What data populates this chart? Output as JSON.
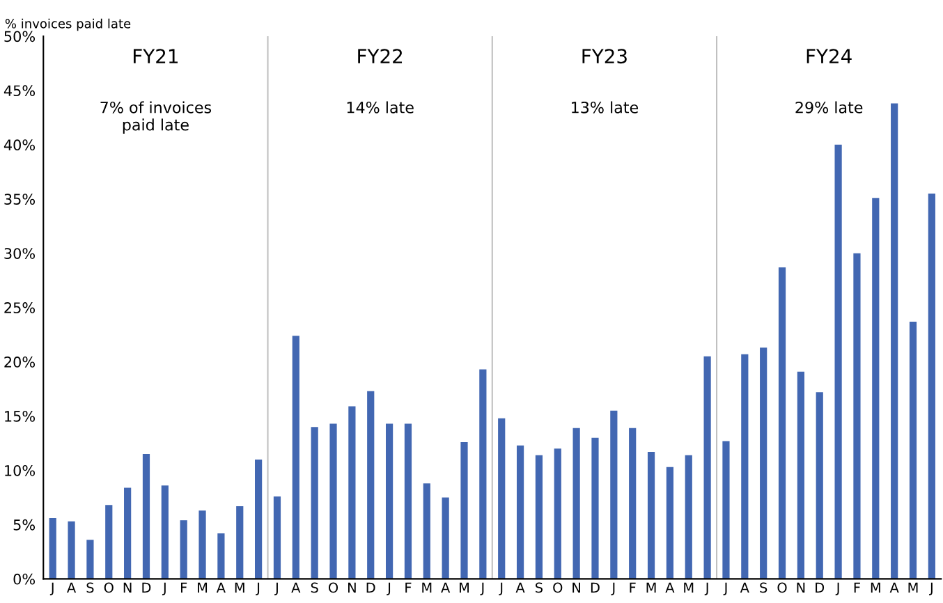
{
  "chart_data": {
    "type": "bar",
    "ylabel": "% invoices paid late",
    "categories": [
      "J",
      "A",
      "S",
      "O",
      "N",
      "D",
      "J",
      "F",
      "M",
      "A",
      "M",
      "J",
      "J",
      "A",
      "S",
      "O",
      "N",
      "D",
      "J",
      "F",
      "M",
      "A",
      "M",
      "J",
      "J",
      "A",
      "S",
      "O",
      "N",
      "D",
      "J",
      "F",
      "M",
      "A",
      "M",
      "J",
      "J",
      "A",
      "S",
      "O",
      "N",
      "D",
      "J",
      "F",
      "M",
      "A",
      "M",
      "J"
    ],
    "values": [
      5.6,
      5.3,
      3.6,
      6.8,
      8.4,
      11.5,
      8.6,
      5.4,
      6.3,
      4.2,
      6.7,
      11.0,
      7.6,
      22.4,
      14.0,
      14.3,
      15.9,
      17.3,
      14.3,
      14.3,
      8.8,
      7.5,
      12.6,
      19.3,
      14.8,
      12.3,
      11.4,
      12.0,
      13.9,
      13.0,
      15.5,
      13.9,
      11.7,
      10.3,
      11.4,
      20.5,
      12.7,
      20.7,
      21.3,
      28.7,
      19.1,
      17.2,
      40.0,
      30.0,
      35.1,
      43.8,
      23.7,
      35.5
    ],
    "color": "#4267b2",
    "ylim": [
      0,
      50
    ],
    "yticks": [
      {
        "value": 0,
        "label": "0%"
      },
      {
        "value": 5,
        "label": "5%"
      },
      {
        "value": 10,
        "label": "10%"
      },
      {
        "value": 15,
        "label": "15%"
      },
      {
        "value": 20,
        "label": "20%"
      },
      {
        "value": 25,
        "label": "25%"
      },
      {
        "value": 30,
        "label": "30%"
      },
      {
        "value": 35,
        "label": "35%"
      },
      {
        "value": 40,
        "label": "40%"
      },
      {
        "value": 45,
        "label": "45%"
      },
      {
        "value": 50,
        "label": "50%"
      }
    ],
    "annotations": [
      "FY21",
      "7% of invoices\npaid late",
      "FY22",
      "14% late",
      "FY23",
      "13% late",
      "FY24",
      "29% late"
    ],
    "grid": false,
    "legend": false
  }
}
